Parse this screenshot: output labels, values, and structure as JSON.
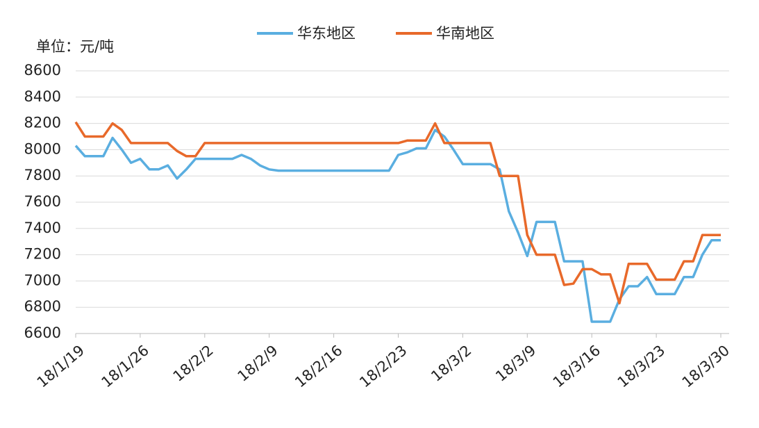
{
  "chart_data": {
    "type": "line",
    "y_label": "单位：元/吨",
    "categories": [
      "18/1/19",
      null,
      null,
      null,
      null,
      null,
      null,
      "18/1/26",
      null,
      null,
      null,
      null,
      null,
      null,
      "18/2/2",
      null,
      null,
      null,
      null,
      null,
      null,
      "18/2/9",
      null,
      null,
      null,
      null,
      null,
      null,
      "18/2/16",
      null,
      null,
      null,
      null,
      null,
      null,
      "18/2/23",
      null,
      null,
      null,
      null,
      null,
      null,
      "18/3/2",
      null,
      null,
      null,
      null,
      null,
      null,
      "18/3/9",
      null,
      null,
      null,
      null,
      null,
      null,
      "18/3/16",
      null,
      null,
      null,
      null,
      null,
      null,
      "18/3/23",
      null,
      null,
      null,
      null,
      null,
      null,
      "18/3/30"
    ],
    "series": [
      {
        "name": "华东地区",
        "color": "#5aaee0",
        "values": [
          8030,
          7950,
          7950,
          7950,
          8090,
          8000,
          7900,
          7930,
          7850,
          7850,
          7880,
          7780,
          7850,
          7930,
          7930,
          7930,
          7930,
          7930,
          7960,
          7930,
          7880,
          7850,
          7840,
          7840,
          7840,
          7840,
          7840,
          7840,
          7840,
          7840,
          7840,
          7840,
          7840,
          7840,
          7840,
          7960,
          7980,
          8010,
          8010,
          8150,
          8100,
          8000,
          7890,
          7890,
          7890,
          7890,
          7850,
          7530,
          7370,
          7190,
          7450,
          7450,
          7450,
          7150,
          7150,
          7150,
          6690,
          6690,
          6690,
          6860,
          6960,
          6960,
          7030,
          6900,
          6900,
          6900,
          7030,
          7030,
          7200,
          7310,
          7310
        ]
      },
      {
        "name": "华南地区",
        "color": "#e8692a",
        "values": [
          8210,
          8100,
          8100,
          8100,
          8200,
          8150,
          8050,
          8050,
          8050,
          8050,
          8050,
          7990,
          7950,
          7950,
          8050,
          8050,
          8050,
          8050,
          8050,
          8050,
          8050,
          8050,
          8050,
          8050,
          8050,
          8050,
          8050,
          8050,
          8050,
          8050,
          8050,
          8050,
          8050,
          8050,
          8050,
          8050,
          8070,
          8070,
          8070,
          8200,
          8050,
          8050,
          8050,
          8050,
          8050,
          8050,
          7800,
          7800,
          7800,
          7350,
          7200,
          7200,
          7200,
          6970,
          6980,
          7090,
          7090,
          7050,
          7050,
          6830,
          7130,
          7130,
          7130,
          7010,
          7010,
          7010,
          7150,
          7150,
          7350,
          7350,
          7350
        ]
      }
    ],
    "ylim": [
      6600,
      8600
    ],
    "yticks": [
      6600,
      6800,
      7000,
      7200,
      7400,
      7600,
      7800,
      8000,
      8200,
      8400,
      8600
    ],
    "grid": true
  }
}
